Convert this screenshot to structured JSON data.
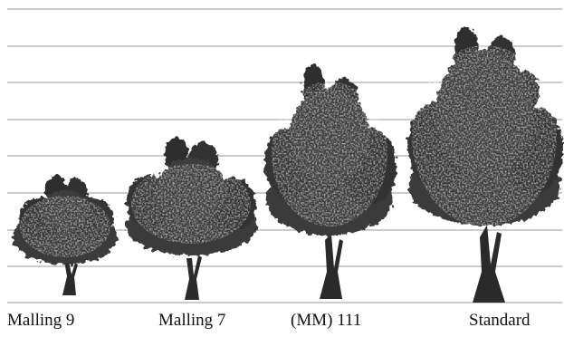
{
  "figure": {
    "rootstocks": [
      {
        "label": "Malling 9"
      },
      {
        "label": "Malling 7"
      },
      {
        "label": "(MM) 111"
      },
      {
        "label": "Standard"
      }
    ],
    "colors": {
      "gridline": "#9a9a9a",
      "foliage_dark": "#2e2e2e",
      "foliage_mid": "#454545",
      "foliage_light": "#5e5e5e",
      "trunk": "#2a2a2a",
      "label_text": "#111111"
    }
  }
}
